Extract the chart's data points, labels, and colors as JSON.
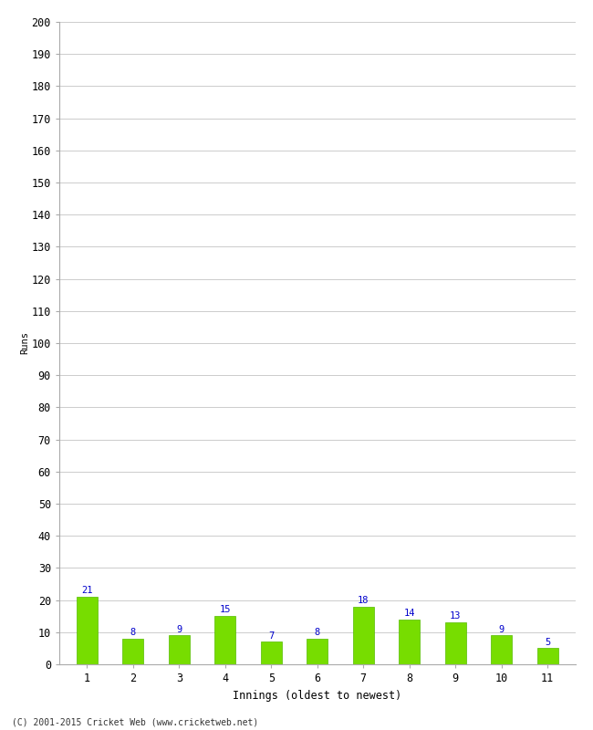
{
  "xlabel": "Innings (oldest to newest)",
  "ylabel": "Runs",
  "categories": [
    "1",
    "2",
    "3",
    "4",
    "5",
    "6",
    "7",
    "8",
    "9",
    "10",
    "11"
  ],
  "values": [
    21,
    8,
    9,
    15,
    7,
    8,
    18,
    14,
    13,
    9,
    5
  ],
  "bar_color": "#77dd00",
  "bar_edge_color": "#55bb00",
  "label_color": "#0000cc",
  "ylim": [
    0,
    200
  ],
  "ytick_step": 10,
  "background_color": "#ffffff",
  "grid_color": "#cccccc",
  "footer_text": "(C) 2001-2015 Cricket Web (www.cricketweb.net)",
  "label_fontsize": 7.5,
  "axis_tick_fontsize": 8.5,
  "xlabel_fontsize": 8.5,
  "ylabel_fontsize": 7.5,
  "bar_width": 0.45
}
